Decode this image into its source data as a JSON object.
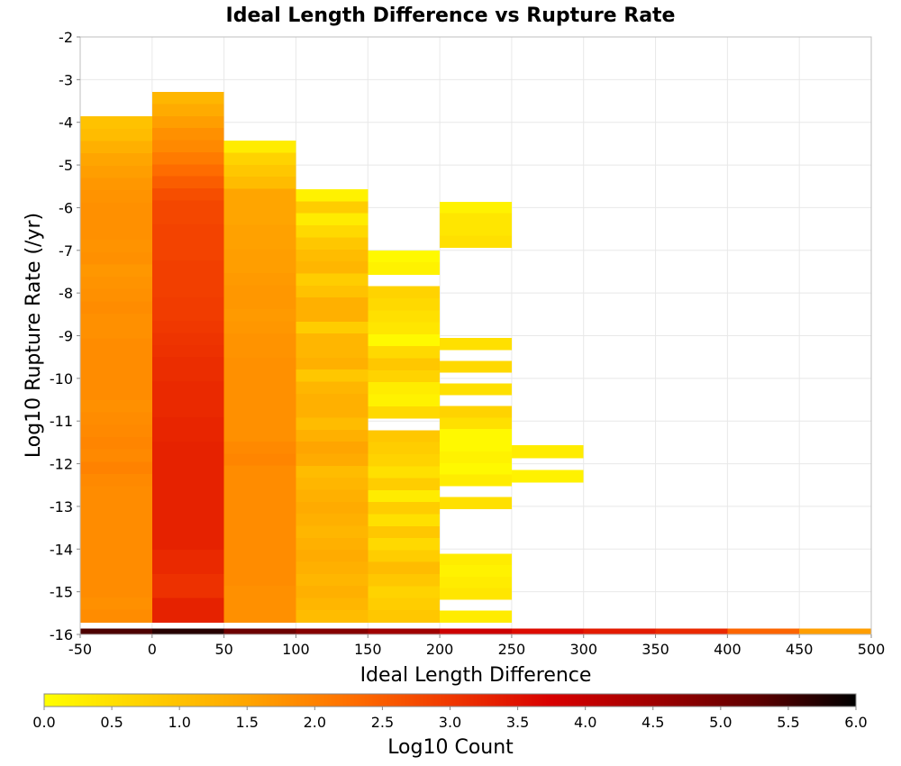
{
  "chart_data": {
    "type": "heatmap",
    "title": "Ideal Length Difference vs Rupture Rate",
    "xlabel": "Ideal Length Difference",
    "ylabel": "Log10 Rupture Rate (/yr)",
    "xlim": [
      -50,
      500
    ],
    "ylim": [
      -16,
      -2
    ],
    "xticks": [
      -50,
      0,
      50,
      100,
      150,
      200,
      250,
      300,
      350,
      400,
      450,
      500
    ],
    "yticks": [
      -2,
      -3,
      -4,
      -5,
      -6,
      -7,
      -8,
      -9,
      -10,
      -11,
      -12,
      -13,
      -14,
      -15,
      -16
    ],
    "x_bin_width": 50,
    "y_bin_height": 0.2857,
    "grid": true,
    "colorbar": {
      "label": "Log10 Count",
      "min": 0.0,
      "max": 6.0,
      "ticks": [
        "0.0",
        "0.5",
        "1.0",
        "1.5",
        "2.0",
        "2.5",
        "3.0",
        "3.5",
        "4.0",
        "4.5",
        "5.0",
        "5.5",
        "6.0"
      ],
      "placement": "bottom",
      "colormap": [
        "#ffff00",
        "#ffd000",
        "#ffa500",
        "#ff7000",
        "#f03800",
        "#d80000",
        "#a00000",
        "#600000",
        "#000000"
      ]
    },
    "columns": [
      {
        "x0": -50,
        "x1": 0,
        "y_top": -3.86,
        "y_bottom": -15.71,
        "values": [
          1.0,
          1.1,
          1.3,
          1.5,
          1.6,
          1.7,
          1.75,
          1.8,
          1.8,
          1.8,
          1.75,
          1.8,
          1.7,
          1.75,
          1.8,
          1.85,
          1.8,
          1.8,
          1.85,
          1.85,
          1.85,
          1.85,
          1.85,
          1.8,
          1.85,
          1.9,
          1.95,
          1.9,
          2.0,
          1.9,
          1.85,
          1.85,
          1.85,
          1.85,
          1.85,
          1.85,
          1.85,
          1.85,
          1.85,
          1.8,
          1.85
        ]
      },
      {
        "x0": 0,
        "x1": 50,
        "y_top": -3.29,
        "y_bottom": -15.71,
        "values": [
          1.2,
          1.4,
          1.6,
          1.8,
          1.9,
          2.1,
          2.3,
          2.5,
          2.7,
          2.8,
          2.8,
          2.85,
          2.85,
          2.85,
          2.9,
          2.9,
          2.9,
          2.95,
          2.95,
          3.0,
          3.05,
          3.1,
          3.15,
          3.15,
          3.2,
          3.2,
          3.2,
          3.25,
          3.25,
          3.3,
          3.3,
          3.3,
          3.3,
          3.3,
          3.3,
          3.3,
          3.3,
          3.3,
          3.2,
          3.2,
          3.1,
          3.1,
          3.3,
          3.3
        ]
      },
      {
        "x0": 50,
        "x1": 100,
        "y_top": -4.43,
        "y_bottom": -15.71,
        "values": [
          0.3,
          0.7,
          0.9,
          1.1,
          1.5,
          1.5,
          1.5,
          1.55,
          1.55,
          1.6,
          1.6,
          1.65,
          1.7,
          1.7,
          1.65,
          1.7,
          1.75,
          1.75,
          1.8,
          1.8,
          1.8,
          1.8,
          1.8,
          1.8,
          1.8,
          1.9,
          1.95,
          1.85,
          1.85,
          1.85,
          1.85,
          1.85,
          1.85,
          1.85,
          1.85,
          1.85,
          1.85,
          1.8,
          1.8,
          1.8
        ]
      },
      {
        "x0": 100,
        "x1": 150,
        "y_top": -5.57,
        "y_bottom": -15.71,
        "values": [
          0.2,
          0.8,
          0.3,
          0.6,
          0.9,
          1.1,
          1.2,
          0.8,
          1.0,
          1.3,
          1.3,
          0.8,
          1.2,
          1.2,
          1.3,
          0.9,
          1.2,
          1.3,
          1.3,
          1.1,
          1.3,
          1.5,
          1.4,
          1.1,
          1.2,
          1.3,
          1.4,
          1.3,
          1.2,
          1.3,
          1.4,
          1.3,
          1.2,
          1.3,
          1.2,
          1.1
        ]
      },
      {
        "x0": 150,
        "x1": 200,
        "y_top": -7.0,
        "y_bottom": -15.71,
        "values": [
          0.1,
          0.2,
          null,
          0.7,
          0.6,
          0.5,
          0.4,
          0.1,
          0.6,
          0.9,
          0.7,
          0.3,
          0.2,
          0.6,
          null,
          0.9,
          0.8,
          0.7,
          0.5,
          0.8,
          0.3,
          0.8,
          0.5,
          0.9,
          0.6,
          0.8,
          1.1,
          0.9,
          0.7,
          0.8,
          0.9
        ]
      },
      {
        "x0": 200,
        "x1": 250,
        "y_top": -5.86,
        "y_bottom": -15.71,
        "values": [
          0.2,
          0.4,
          0.4,
          0.5,
          null,
          null,
          null,
          null,
          null,
          null,
          null,
          null,
          0.5,
          null,
          0.6,
          null,
          0.5,
          null,
          0.7,
          0.5,
          0.1,
          0.1,
          0.2,
          0.1,
          0.3,
          null,
          0.5,
          null,
          null,
          null,
          null,
          0.3,
          0.2,
          0.3,
          0.4,
          null,
          0.3
        ]
      },
      {
        "x0": 250,
        "x1": 300,
        "y_top": -11.57,
        "y_bottom": -12.43,
        "values": [
          0.3,
          null,
          0.2
        ]
      }
    ],
    "bottom_row": {
      "y0": -16.0,
      "y1": -15.86,
      "bins": [
        {
          "x0": -50,
          "x1": 0,
          "value": 5.4
        },
        {
          "x0": 0,
          "x1": 50,
          "value": 5.7
        },
        {
          "x0": 50,
          "x1": 100,
          "value": 5.1
        },
        {
          "x0": 100,
          "x1": 150,
          "value": 4.8
        },
        {
          "x0": 150,
          "x1": 200,
          "value": 4.5
        },
        {
          "x0": 200,
          "x1": 250,
          "value": 3.9
        },
        {
          "x0": 250,
          "x1": 300,
          "value": 3.6
        },
        {
          "x0": 300,
          "x1": 350,
          "value": 3.4
        },
        {
          "x0": 350,
          "x1": 400,
          "value": 3.2
        },
        {
          "x0": 400,
          "x1": 450,
          "value": 2.4
        },
        {
          "x0": 450,
          "x1": 500,
          "value": 1.6
        }
      ]
    }
  }
}
